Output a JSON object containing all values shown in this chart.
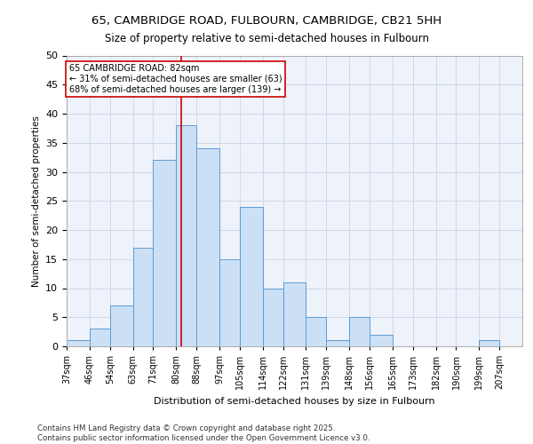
{
  "title1": "65, CAMBRIDGE ROAD, FULBOURN, CAMBRIDGE, CB21 5HH",
  "title2": "Size of property relative to semi-detached houses in Fulbourn",
  "xlabel": "Distribution of semi-detached houses by size in Fulbourn",
  "ylabel": "Number of semi-detached properties",
  "bin_labels": [
    "37sqm",
    "46sqm",
    "54sqm",
    "63sqm",
    "71sqm",
    "80sqm",
    "88sqm",
    "97sqm",
    "105sqm",
    "114sqm",
    "122sqm",
    "131sqm",
    "139sqm",
    "148sqm",
    "156sqm",
    "165sqm",
    "173sqm",
    "182sqm",
    "190sqm",
    "199sqm",
    "207sqm"
  ],
  "bin_edges": [
    37,
    46,
    54,
    63,
    71,
    80,
    88,
    97,
    105,
    114,
    122,
    131,
    139,
    148,
    156,
    165,
    173,
    182,
    190,
    199,
    207,
    216
  ],
  "counts": [
    1,
    3,
    7,
    17,
    32,
    38,
    34,
    15,
    24,
    10,
    11,
    5,
    1,
    5,
    2,
    0,
    0,
    0,
    0,
    1,
    0
  ],
  "bar_facecolor": "#cce0f5",
  "bar_edgecolor": "#5b9bd5",
  "grid_color": "#d0d8e8",
  "bg_color": "#eef2fa",
  "vline_x": 82,
  "vline_color": "#cc0000",
  "annotation_title": "65 CAMBRIDGE ROAD: 82sqm",
  "annotation_line1": "← 31% of semi-detached houses are smaller (63)",
  "annotation_line2": "68% of semi-detached houses are larger (139) →",
  "annotation_box_color": "#ffffff",
  "annotation_box_edge": "#cc0000",
  "footer1": "Contains HM Land Registry data © Crown copyright and database right 2025.",
  "footer2": "Contains public sector information licensed under the Open Government Licence v3.0.",
  "ylim": [
    0,
    50
  ],
  "yticks": [
    0,
    5,
    10,
    15,
    20,
    25,
    30,
    35,
    40,
    45,
    50
  ]
}
